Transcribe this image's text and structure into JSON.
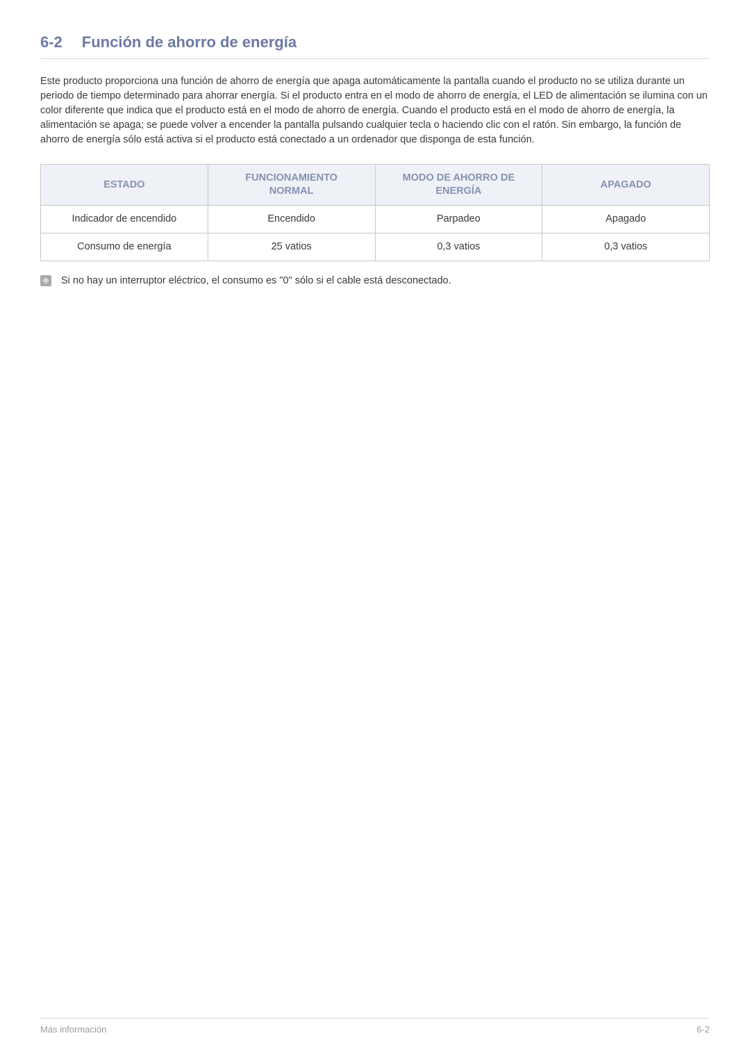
{
  "colors": {
    "heading": "#6c7aa3",
    "table_header_bg": "#eef1f6",
    "table_header_text": "#8792b3",
    "border": "#c8c8c8",
    "body_text": "#3a3a3a",
    "footer_text": "#9a9a9a",
    "rule": "#d8d8d8"
  },
  "heading": {
    "number": "6-2",
    "title": "Función de ahorro de energía"
  },
  "intro": "Este producto proporciona una función de ahorro de energía que apaga automáticamente la pantalla cuando el producto no se utiliza durante un periodo de tiempo determinado para ahorrar energía. Si el producto entra en el modo de ahorro de energía, el LED de alimentación se ilumina con un color diferente que indica que el producto está en el modo de ahorro de energía. Cuando el producto está en el modo de ahorro de energía, la alimentación se apaga; se puede volver a encender la pantalla pulsando cualquier tecla o haciendo clic con el ratón. Sin embargo, la función de ahorro de energía sólo está activa si el producto está conectado a un ordenador que disponga de esta función.",
  "table": {
    "columns": [
      "ESTADO",
      "FUNCIONAMIENTO NORMAL",
      "MODO DE AHORRO DE ENERGÍA",
      "APAGADO"
    ],
    "rows": [
      [
        "Indicador de encendido",
        "Encendido",
        "Parpadeo",
        "Apagado"
      ],
      [
        "Consumo de energía",
        "25 vatios",
        "0,3 vatios",
        "0,3 vatios"
      ]
    ],
    "col_widths": [
      "25%",
      "25%",
      "25%",
      "25%"
    ]
  },
  "note": "Si no hay un interruptor eléctrico, el consumo es \"0\" sólo si el cable está desconectado.",
  "footer": {
    "left": "Más información",
    "right": "6-2"
  }
}
